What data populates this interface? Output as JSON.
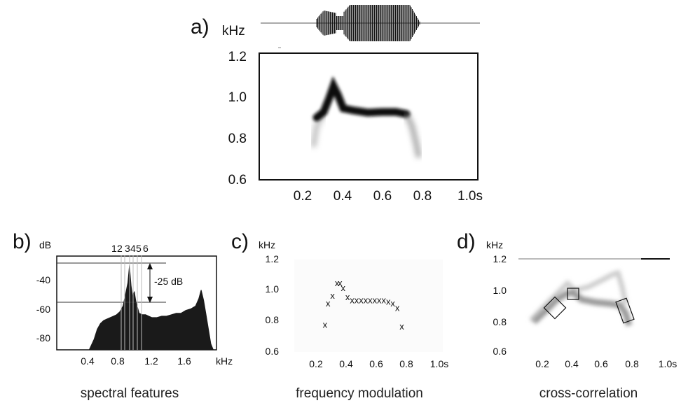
{
  "panel_a": {
    "letter": "a)",
    "y_unit": "kHz",
    "y_ticks": [
      "1.2",
      "1.0",
      "0.8",
      "0.6"
    ],
    "x_ticks": [
      "0.2",
      "0.4",
      "0.6",
      "0.8",
      "1.0s"
    ]
  },
  "panel_b": {
    "letter": "b)",
    "y_unit": "dB",
    "x_unit": "kHz",
    "y_ticks": [
      "-40",
      "-60",
      "-80"
    ],
    "x_ticks": [
      "0.4",
      "0.8",
      "1.2",
      "1.6"
    ],
    "peak_labels": [
      "1",
      "2",
      "3",
      "4",
      "5",
      "6"
    ],
    "range_label": "-25 dB",
    "caption": "spectral features"
  },
  "panel_c": {
    "letter": "c)",
    "y_unit": "kHz",
    "y_ticks": [
      "1.2",
      "1.0",
      "0.8",
      "0.6"
    ],
    "x_ticks": [
      "0.2",
      "0.4",
      "0.6",
      "0.8",
      "1.0s"
    ],
    "marker": "x",
    "caption": "frequency modulation"
  },
  "panel_d": {
    "letter": "d)",
    "y_unit": "kHz",
    "y_ticks": [
      "1.2",
      "1.0",
      "0.8",
      "0.6"
    ],
    "x_ticks": [
      "0.2",
      "0.4",
      "0.6",
      "0.8",
      "1.0s"
    ],
    "caption": "cross-correlation"
  },
  "chart_data": [
    {
      "type": "scatter",
      "panel": "c",
      "xlim": [
        0,
        1.05
      ],
      "ylim": [
        0.6,
        1.2
      ],
      "x": [
        0.26,
        0.28,
        0.31,
        0.34,
        0.36,
        0.38,
        0.41,
        0.44,
        0.47,
        0.5,
        0.53,
        0.56,
        0.59,
        0.62,
        0.65,
        0.68,
        0.71,
        0.74,
        0.77
      ],
      "y": [
        0.77,
        0.91,
        0.96,
        1.04,
        1.04,
        1.01,
        0.95,
        0.93,
        0.93,
        0.93,
        0.93,
        0.93,
        0.93,
        0.93,
        0.93,
        0.92,
        0.91,
        0.88,
        0.76
      ]
    },
    {
      "type": "area",
      "panel": "b",
      "xlim": [
        0,
        2.0
      ],
      "ylim": [
        -90,
        -25
      ],
      "x": [
        0.42,
        0.48,
        0.52,
        0.56,
        0.6,
        0.64,
        0.68,
        0.72,
        0.76,
        0.8,
        0.84,
        0.87,
        0.9,
        0.92,
        0.94,
        0.96,
        0.98,
        1.0,
        1.04,
        1.08,
        1.12,
        1.16,
        1.2,
        1.26,
        1.32,
        1.38,
        1.44,
        1.5,
        1.56,
        1.62,
        1.68,
        1.74,
        1.78,
        1.81,
        1.84,
        1.87,
        1.9,
        1.93,
        1.96
      ],
      "y": [
        -90,
        -81,
        -74,
        -70,
        -68,
        -67,
        -66,
        -65,
        -64,
        -62,
        -58,
        -50,
        -42,
        -30,
        -44,
        -52,
        -48,
        -55,
        -63,
        -64,
        -64,
        -65,
        -66,
        -66,
        -65,
        -65,
        -64,
        -63,
        -63,
        -61,
        -60,
        -58,
        -53,
        -47,
        -54,
        -64,
        -74,
        -84,
        -90
      ]
    }
  ]
}
